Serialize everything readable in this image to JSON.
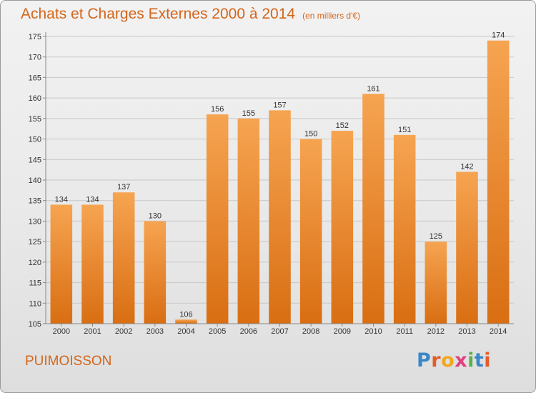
{
  "title": "Achats et Charges Externes 2000 à 2014",
  "unit_note": "(en milliers d'€)",
  "commune": "PUIMOISSON",
  "logo": {
    "letters": [
      "P",
      "r",
      "o",
      "x",
      "i",
      "t",
      "i"
    ],
    "colors": [
      "#3a87c8",
      "#e35d2b",
      "#f2a81d",
      "#e04080",
      "#5ab04b",
      "#3a87c8",
      "#e35d2b"
    ]
  },
  "colors": {
    "bar_light": "#f6a451",
    "bar_dark": "#d96e12",
    "title": "#d4661b"
  },
  "chart_data": {
    "type": "bar",
    "categories": [
      "2000",
      "2001",
      "2002",
      "2003",
      "2004",
      "2005",
      "2006",
      "2007",
      "2008",
      "2009",
      "2010",
      "2011",
      "2012",
      "2013",
      "2014"
    ],
    "values": [
      134,
      134,
      137,
      130,
      106,
      156,
      155,
      157,
      150,
      152,
      161,
      151,
      125,
      142,
      174
    ],
    "ylim": [
      105,
      175
    ],
    "yticks": [
      105,
      110,
      115,
      120,
      125,
      130,
      135,
      140,
      145,
      150,
      155,
      160,
      165,
      170,
      175
    ],
    "grid": true,
    "data_labels": true
  }
}
